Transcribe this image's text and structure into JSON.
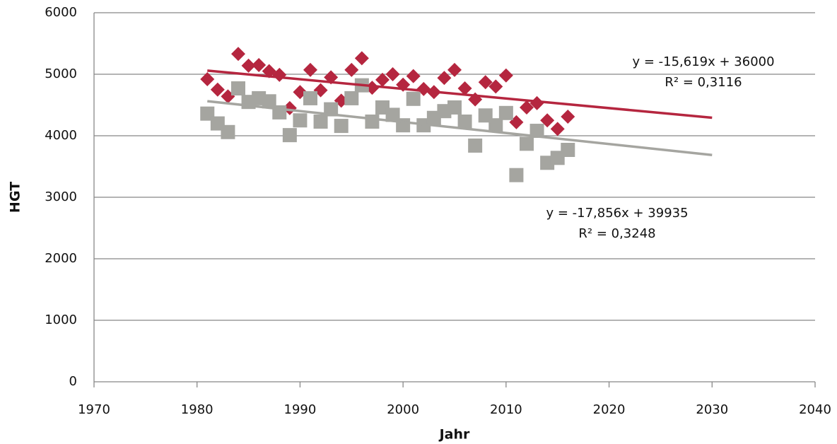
{
  "chart_data": {
    "type": "scatter",
    "xlabel": "Jahr",
    "ylabel": "HGT",
    "xlim": [
      1970,
      2040
    ],
    "xticks": [
      1970,
      1980,
      1990,
      2000,
      2010,
      2020,
      2030,
      2040
    ],
    "ylim": [
      0,
      6000
    ],
    "yticks": [
      0,
      1000,
      2000,
      3000,
      4000,
      5000,
      6000
    ],
    "grid": true,
    "x": [
      1981,
      1982,
      1983,
      1984,
      1985,
      1986,
      1987,
      1988,
      1989,
      1990,
      1991,
      1992,
      1993,
      1994,
      1995,
      1996,
      1997,
      1998,
      1999,
      2000,
      2001,
      2002,
      2003,
      2004,
      2005,
      2006,
      2007,
      2008,
      2009,
      2010,
      2011,
      2012,
      2013,
      2014,
      2015,
      2016
    ],
    "series": [
      {
        "color": "#b5263f",
        "marker": "diamond",
        "values": [
          4920,
          4750,
          4640,
          5330,
          5140,
          5150,
          5050,
          4990,
          4450,
          4710,
          5070,
          4740,
          4950,
          4570,
          5070,
          5260,
          4780,
          4910,
          5000,
          4830,
          4970,
          4760,
          4710,
          4940,
          5070,
          4770,
          4590,
          4870,
          4800,
          4980,
          4220,
          4460,
          4530,
          4250,
          4110,
          4310
        ],
        "trend": {
          "x": [
            1981,
            2030
          ],
          "values": [
            5059,
            4293
          ]
        }
      },
      {
        "color": "#a5a5a0",
        "marker": "square",
        "values": [
          4360,
          4200,
          4060,
          4770,
          4550,
          4610,
          4560,
          4380,
          4010,
          4250,
          4610,
          4230,
          4430,
          4160,
          4610,
          4820,
          4230,
          4460,
          4340,
          4170,
          4600,
          4170,
          4290,
          4400,
          4460,
          4230,
          3840,
          4330,
          4170,
          4370,
          3360,
          3870,
          4080,
          3560,
          3640,
          3770
        ],
        "trend": {
          "x": [
            1981,
            2030
          ],
          "values": [
            4562,
            3687
          ]
        }
      }
    ],
    "annotations": [
      [
        "y = -15,619x + 36000",
        "R² = 0,3116"
      ],
      [
        "y = -17,856x + 39935",
        "R² = 0,3248"
      ]
    ]
  }
}
